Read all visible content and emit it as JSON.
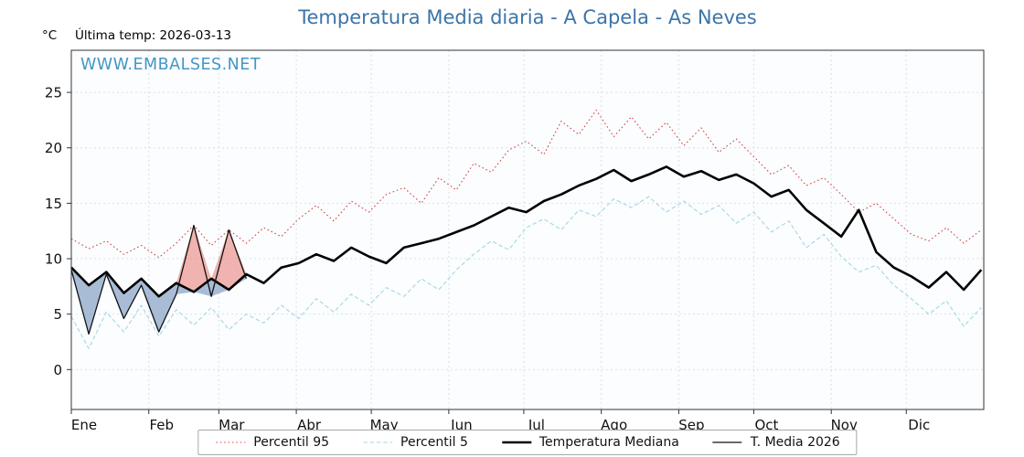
{
  "page": {
    "unit_label": "°C",
    "last_temp_label": "Última temp: 2026-03-13",
    "watermark": "WWW.EMBALSES.NET",
    "colors": {
      "title": "#3b74a8",
      "watermark": "#4596c6",
      "percentil95": "#dd4444",
      "percentil5": "#a5d5e5",
      "mediana": "#000000",
      "media2026": "#111111"
    }
  },
  "chart_data": {
    "type": "line",
    "title": "Temperatura Media diaria - A Capela - As Neves",
    "xlabel": "",
    "ylabel": "°C",
    "x_tick_labels": [
      "Ene",
      "Feb",
      "Mar",
      "Abr",
      "May",
      "Jun",
      "Jul",
      "Ago",
      "Sep",
      "Oct",
      "Nov",
      "Dic"
    ],
    "month_start_days": [
      1,
      32,
      60,
      91,
      121,
      152,
      182,
      213,
      244,
      274,
      305,
      335
    ],
    "yticks": [
      0,
      5,
      10,
      15,
      20,
      25
    ],
    "ylim": [
      -3.6,
      28.8
    ],
    "x_range_days": [
      1,
      365
    ],
    "x_step_days": 7,
    "grid": true,
    "legend_position": "bottom",
    "plot_bg": "#fbfdfe",
    "grid_color": "#d9e2ea",
    "fill_above_color": "rgba(228,88,82,0.45)",
    "fill_below_color": "rgba(100,135,180,0.55)",
    "series": [
      {
        "name": "Percentil 95",
        "color": "#dd4444",
        "style": "dotted",
        "width": 1.1,
        "values": [
          11.8,
          10.9,
          11.6,
          10.4,
          11.2,
          10.1,
          11.4,
          13.0,
          11.2,
          12.6,
          11.4,
          12.8,
          12.0,
          13.6,
          14.8,
          13.4,
          15.2,
          14.2,
          15.8,
          16.4,
          15.0,
          17.3,
          16.2,
          18.6,
          17.8,
          19.8,
          20.6,
          19.4,
          22.4,
          21.2,
          23.4,
          21.0,
          22.8,
          20.8,
          22.3,
          20.2,
          21.8,
          19.6,
          20.8,
          19.2,
          17.6,
          18.4,
          16.6,
          17.3,
          15.8,
          14.2,
          15.0,
          13.6,
          12.2,
          11.6,
          12.8,
          11.4,
          12.6
        ]
      },
      {
        "name": "Percentil 5",
        "color": "#a5d5e5",
        "style": "dashed",
        "width": 1.1,
        "values": [
          4.8,
          1.9,
          5.2,
          3.4,
          5.8,
          3.0,
          5.4,
          4.0,
          5.6,
          3.6,
          5.0,
          4.2,
          5.8,
          4.6,
          6.4,
          5.2,
          6.8,
          5.8,
          7.4,
          6.6,
          8.2,
          7.2,
          9.0,
          10.4,
          11.6,
          10.8,
          12.8,
          13.6,
          12.6,
          14.4,
          13.8,
          15.4,
          14.6,
          15.6,
          14.2,
          15.2,
          14.0,
          14.8,
          13.2,
          14.2,
          12.4,
          13.4,
          11.0,
          12.2,
          10.2,
          8.8,
          9.4,
          7.6,
          6.4,
          5.0,
          6.2,
          3.9,
          5.6
        ]
      },
      {
        "name": "Temperatura Mediana",
        "color": "#000000",
        "style": "solid",
        "width": 2.6,
        "values": [
          9.2,
          7.6,
          8.8,
          6.9,
          8.2,
          6.6,
          7.8,
          7.0,
          8.2,
          7.2,
          8.6,
          7.8,
          9.2,
          9.6,
          10.4,
          9.8,
          11.0,
          10.2,
          9.6,
          11.0,
          11.4,
          11.8,
          12.4,
          13.0,
          13.8,
          14.6,
          14.2,
          15.2,
          15.8,
          16.6,
          17.2,
          18.0,
          17.0,
          17.6,
          18.3,
          17.4,
          17.9,
          17.1,
          17.6,
          16.8,
          15.6,
          16.2,
          14.4,
          13.2,
          12.0,
          14.4,
          10.6,
          9.2,
          8.4,
          7.4,
          8.8,
          7.2,
          9.0
        ]
      },
      {
        "name": "T. Media 2026",
        "color": "#111111",
        "style": "solid",
        "width": 1.3,
        "values": [
          9.0,
          3.2,
          8.6,
          4.6,
          7.6,
          3.4,
          6.8,
          13.0,
          6.6,
          12.6,
          8.2
        ]
      }
    ]
  }
}
